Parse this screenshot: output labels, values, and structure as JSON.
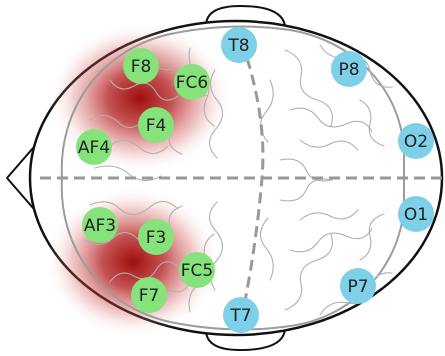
{
  "colors": {
    "frontal_electrode": "#86e27a",
    "other_electrode": "#7ecfe8",
    "heat": "#b30000",
    "midline": "#999999"
  },
  "electrodes": [
    {
      "label": "F8",
      "group": "frontal"
    },
    {
      "label": "FC6",
      "group": "frontal"
    },
    {
      "label": "F4",
      "group": "frontal"
    },
    {
      "label": "AF4",
      "group": "frontal"
    },
    {
      "label": "AF3",
      "group": "frontal"
    },
    {
      "label": "F3",
      "group": "frontal"
    },
    {
      "label": "FC5",
      "group": "frontal"
    },
    {
      "label": "F7",
      "group": "frontal"
    },
    {
      "label": "T8",
      "group": "other"
    },
    {
      "label": "P8",
      "group": "other"
    },
    {
      "label": "O2",
      "group": "other"
    },
    {
      "label": "O1",
      "group": "other"
    },
    {
      "label": "P7",
      "group": "other"
    },
    {
      "label": "T7",
      "group": "other"
    }
  ]
}
